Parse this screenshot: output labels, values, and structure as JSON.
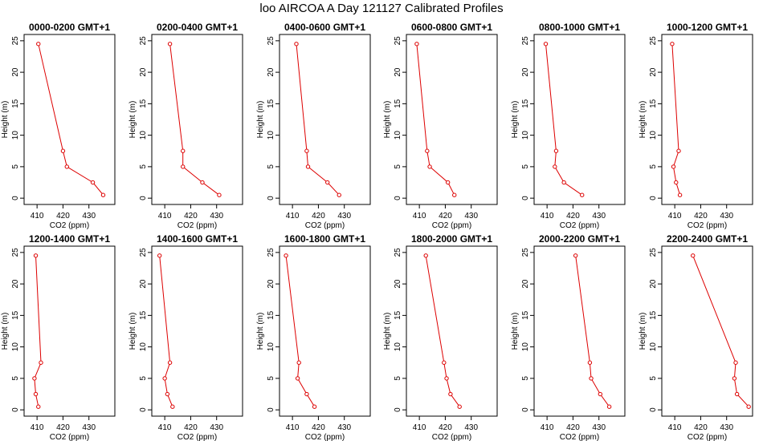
{
  "page": {
    "title": "loo AIRCOA A  Day 121127  Calibrated Profiles"
  },
  "colors": {
    "series": "#dd0000",
    "axis": "#000000",
    "background": "#ffffff"
  },
  "chart_data": [
    {
      "type": "line",
      "title": "0000-0200 GMT+1",
      "xlabel": "CO2 (ppm)",
      "ylabel": "Height (m)",
      "xlim": [
        405,
        440
      ],
      "ylim": [
        -1,
        26
      ],
      "xticks": [
        410,
        420,
        430
      ],
      "yticks": [
        0,
        5,
        10,
        15,
        20,
        25
      ],
      "grid": false,
      "x": [
        435.5,
        431.5,
        421.5,
        420.0,
        410.5
      ],
      "y": [
        0.5,
        2.5,
        5,
        7.5,
        24.5
      ]
    },
    {
      "type": "line",
      "title": "0200-0400 GMT+1",
      "xlabel": "CO2 (ppm)",
      "ylabel": "Height (m)",
      "xlim": [
        405,
        440
      ],
      "ylim": [
        -1,
        26
      ],
      "xticks": [
        410,
        420,
        430
      ],
      "yticks": [
        0,
        5,
        10,
        15,
        20,
        25
      ],
      "grid": false,
      "x": [
        431.0,
        424.5,
        417.0,
        417.0,
        412.0
      ],
      "y": [
        0.5,
        2.5,
        5,
        7.5,
        24.5
      ]
    },
    {
      "type": "line",
      "title": "0400-0600 GMT+1",
      "xlabel": "CO2 (ppm)",
      "ylabel": "Height (m)",
      "xlim": [
        405,
        440
      ],
      "ylim": [
        -1,
        26
      ],
      "xticks": [
        410,
        420,
        430
      ],
      "yticks": [
        0,
        5,
        10,
        15,
        20,
        25
      ],
      "grid": false,
      "x": [
        428.0,
        423.5,
        416.0,
        415.5,
        411.5
      ],
      "y": [
        0.5,
        2.5,
        5,
        7.5,
        24.5
      ]
    },
    {
      "type": "line",
      "title": "0600-0800 GMT+1",
      "xlabel": "CO2 (ppm)",
      "ylabel": "Height (m)",
      "xlim": [
        405,
        440
      ],
      "ylim": [
        -1,
        26
      ],
      "xticks": [
        410,
        420,
        430
      ],
      "yticks": [
        0,
        5,
        10,
        15,
        20,
        25
      ],
      "grid": false,
      "x": [
        423.5,
        421.0,
        414.0,
        413.0,
        409.0
      ],
      "y": [
        0.5,
        2.5,
        5,
        7.5,
        24.5
      ]
    },
    {
      "type": "line",
      "title": "0800-1000 GMT+1",
      "xlabel": "CO2 (ppm)",
      "ylabel": "Height (m)",
      "xlim": [
        405,
        440
      ],
      "ylim": [
        -1,
        26
      ],
      "xticks": [
        410,
        420,
        430
      ],
      "yticks": [
        0,
        5,
        10,
        15,
        20,
        25
      ],
      "grid": false,
      "x": [
        423.5,
        416.5,
        413.0,
        413.5,
        409.5
      ],
      "y": [
        0.5,
        2.5,
        5,
        7.5,
        24.5
      ]
    },
    {
      "type": "line",
      "title": "1000-1200 GMT+1",
      "xlabel": "CO2 (ppm)",
      "ylabel": "Height (m)",
      "xlim": [
        405,
        440
      ],
      "ylim": [
        -1,
        26
      ],
      "xticks": [
        410,
        420,
        430
      ],
      "yticks": [
        0,
        5,
        10,
        15,
        20,
        25
      ],
      "grid": false,
      "x": [
        412.0,
        410.5,
        409.5,
        411.5,
        409.0
      ],
      "y": [
        0.5,
        2.5,
        5,
        7.5,
        24.5
      ]
    },
    {
      "type": "line",
      "title": "1200-1400 GMT+1",
      "xlabel": "CO2 (ppm)",
      "ylabel": "Height (m)",
      "xlim": [
        405,
        440
      ],
      "ylim": [
        -1,
        26
      ],
      "xticks": [
        410,
        420,
        430
      ],
      "yticks": [
        0,
        5,
        10,
        15,
        20,
        25
      ],
      "grid": false,
      "x": [
        410.5,
        409.5,
        409.0,
        411.5,
        409.5
      ],
      "y": [
        0.5,
        2.5,
        5,
        7.5,
        24.5
      ]
    },
    {
      "type": "line",
      "title": "1400-1600 GMT+1",
      "xlabel": "CO2 (ppm)",
      "ylabel": "Height (m)",
      "xlim": [
        405,
        440
      ],
      "ylim": [
        -1,
        26
      ],
      "xticks": [
        410,
        420,
        430
      ],
      "yticks": [
        0,
        5,
        10,
        15,
        20,
        25
      ],
      "grid": false,
      "x": [
        413.0,
        411.0,
        410.0,
        412.0,
        408.0
      ],
      "y": [
        0.5,
        2.5,
        5,
        7.5,
        24.5
      ]
    },
    {
      "type": "line",
      "title": "1600-1800 GMT+1",
      "xlabel": "CO2 (ppm)",
      "ylabel": "Height (m)",
      "xlim": [
        405,
        440
      ],
      "ylim": [
        -1,
        26
      ],
      "xticks": [
        410,
        420,
        430
      ],
      "yticks": [
        0,
        5,
        10,
        15,
        20,
        25
      ],
      "grid": false,
      "x": [
        418.5,
        415.5,
        412.0,
        412.5,
        407.5
      ],
      "y": [
        0.5,
        2.5,
        5,
        7.5,
        24.5
      ]
    },
    {
      "type": "line",
      "title": "1800-2000 GMT+1",
      "xlabel": "CO2 (ppm)",
      "ylabel": "Height (m)",
      "xlim": [
        405,
        440
      ],
      "ylim": [
        -1,
        26
      ],
      "xticks": [
        410,
        420,
        430
      ],
      "yticks": [
        0,
        5,
        10,
        15,
        20,
        25
      ],
      "grid": false,
      "x": [
        425.5,
        422.0,
        420.5,
        419.5,
        412.5
      ],
      "y": [
        0.5,
        2.5,
        5,
        7.5,
        24.5
      ]
    },
    {
      "type": "line",
      "title": "2000-2200 GMT+1",
      "xlabel": "CO2 (ppm)",
      "ylabel": "Height (m)",
      "xlim": [
        405,
        440
      ],
      "ylim": [
        -1,
        26
      ],
      "xticks": [
        410,
        420,
        430
      ],
      "yticks": [
        0,
        5,
        10,
        15,
        20,
        25
      ],
      "grid": false,
      "x": [
        434.0,
        430.5,
        427.0,
        426.5,
        421.0
      ],
      "y": [
        0.5,
        2.5,
        5,
        7.5,
        24.5
      ]
    },
    {
      "type": "line",
      "title": "2200-2400 GMT+1",
      "xlabel": "CO2 (ppm)",
      "ylabel": "Height (m)",
      "xlim": [
        405,
        440
      ],
      "ylim": [
        -1,
        26
      ],
      "xticks": [
        410,
        420,
        430
      ],
      "yticks": [
        0,
        5,
        10,
        15,
        20,
        25
      ],
      "grid": false,
      "x": [
        438.5,
        434.0,
        433.0,
        433.5,
        417.0
      ],
      "y": [
        0.5,
        2.5,
        5,
        7.5,
        24.5
      ]
    }
  ]
}
